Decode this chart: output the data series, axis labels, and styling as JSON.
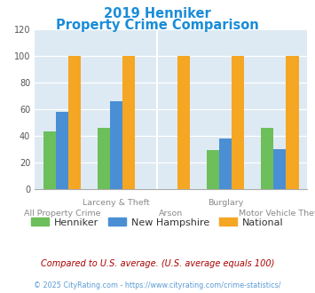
{
  "title_line1": "2019 Henniker",
  "title_line2": "Property Crime Comparison",
  "title_color": "#1a8cd8",
  "categories": [
    "All Property Crime",
    "Larceny & Theft",
    "Arson",
    "Burglary",
    "Motor Vehicle Theft"
  ],
  "group_labels_top": [
    "",
    "Larceny & Theft",
    "",
    "Burglary",
    ""
  ],
  "group_labels_bot": [
    "All Property Crime",
    "",
    "Arson",
    "",
    "Motor Vehicle Theft"
  ],
  "henniker": [
    43,
    46,
    0,
    29,
    46
  ],
  "new_hampshire": [
    58,
    66,
    0,
    38,
    30
  ],
  "national": [
    100,
    100,
    100,
    100,
    100
  ],
  "bar_colors": {
    "henniker": "#6dbf5b",
    "new_hampshire": "#4a8fd4",
    "national": "#f5a623"
  },
  "ylim": [
    0,
    120
  ],
  "yticks": [
    0,
    20,
    40,
    60,
    80,
    100,
    120
  ],
  "legend_labels": [
    "Henniker",
    "New Hampshire",
    "National"
  ],
  "footnote1": "Compared to U.S. average. (U.S. average equals 100)",
  "footnote2": "© 2025 CityRating.com - https://www.cityrating.com/crime-statistics/",
  "footnote1_color": "#aa0000",
  "footnote2_color": "#5b9bd5",
  "plot_bg": "#ddeaf3"
}
